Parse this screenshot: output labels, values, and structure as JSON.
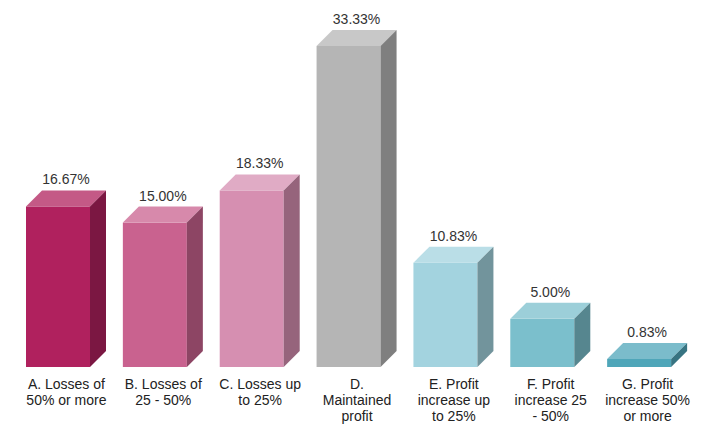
{
  "chart_data": {
    "type": "bar",
    "categories": [
      "A. Losses of 50% or more",
      "B. Losses of 25 - 50%",
      "C. Losses up to 25%",
      "D. Maintained profit",
      "E. Profit increase up to 25%",
      "F. Profit increase 25 - 50%",
      "G. Profit increase 50% or more"
    ],
    "values": [
      16.67,
      15.0,
      18.33,
      33.33,
      10.83,
      5.0,
      0.83
    ],
    "value_labels": [
      "16.67%",
      "15.00%",
      "18.33%",
      "33.33%",
      "10.83%",
      "5.00%",
      "0.83%"
    ],
    "colors": [
      "#b0215e",
      "#c9628f",
      "#d68fb1",
      "#b5b5b5",
      "#a3d3df",
      "#7bbfcc",
      "#4fa6b9"
    ],
    "data_labels": true,
    "tick_labels": "x",
    "grid": false
  }
}
